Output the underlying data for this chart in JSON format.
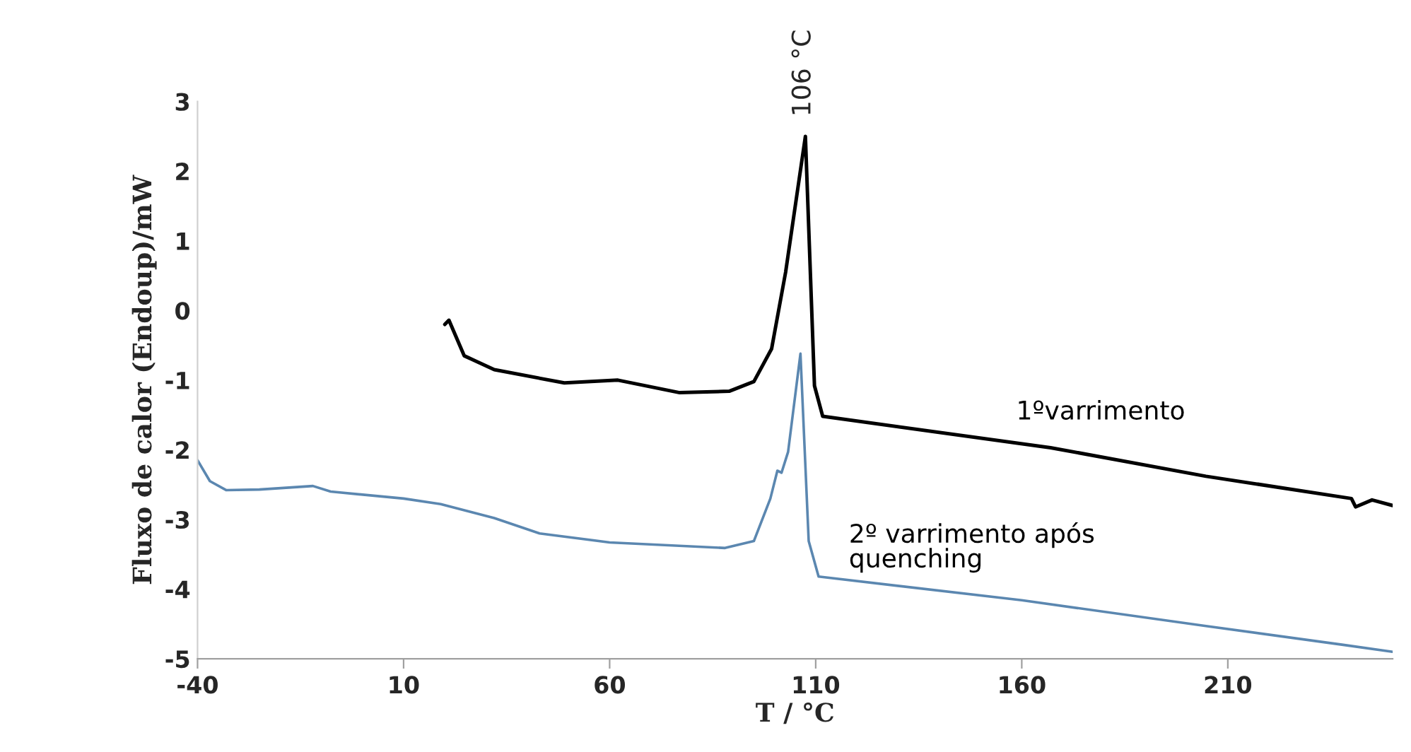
{
  "chart_data": {
    "type": "line",
    "xlabel": "T / °C",
    "ylabel": "Fluxo de calor (Endoup)/mW",
    "xlim": [
      -40,
      250
    ],
    "xticks": [
      -40,
      10,
      60,
      110,
      160,
      210
    ],
    "ylim": [
      -5,
      3
    ],
    "yticks": [
      -5,
      -4,
      -3,
      -2,
      -1,
      0,
      1,
      2,
      3
    ],
    "grid": false,
    "legend": false,
    "marker": "none",
    "line_style": "solid",
    "annotations": [
      {
        "text": "106 °C",
        "x": 107,
        "y": 2.5
      }
    ],
    "series": [
      {
        "name": "1ºvarrimento",
        "color": "#000000",
        "x": [
          20,
          21,
          24.7,
          32,
          49,
          62,
          77,
          89,
          95,
          99.3,
          102.7,
          107.5,
          109.7,
          111.7,
          167,
          204.7,
          240,
          241,
          245,
          250
        ],
        "values": [
          -0.2,
          -0.14,
          -0.65,
          -0.85,
          -1.04,
          -1.0,
          -1.18,
          -1.16,
          -1.02,
          -0.55,
          0.55,
          2.5,
          -1.08,
          -1.52,
          -1.97,
          -2.38,
          -2.7,
          -2.82,
          -2.72,
          -2.8
        ]
      },
      {
        "name": "2º varrimento após\nquenching",
        "color": "#5b87b0",
        "x": [
          -40,
          -37,
          -33,
          -25,
          -12,
          -7.7,
          10,
          19,
          32,
          43,
          60,
          88,
          95,
          99,
          100.7,
          101.7,
          103.3,
          106.3,
          108.3,
          110.7,
          160,
          204.7,
          238,
          250
        ],
        "values": [
          -2.15,
          -2.45,
          -2.58,
          -2.57,
          -2.52,
          -2.6,
          -2.7,
          -2.78,
          -2.98,
          -3.2,
          -3.33,
          -3.41,
          -3.31,
          -2.7,
          -2.3,
          -2.33,
          -2.03,
          -0.62,
          -3.31,
          -3.82,
          -4.16,
          -4.53,
          -4.8,
          -4.9
        ]
      }
    ]
  }
}
